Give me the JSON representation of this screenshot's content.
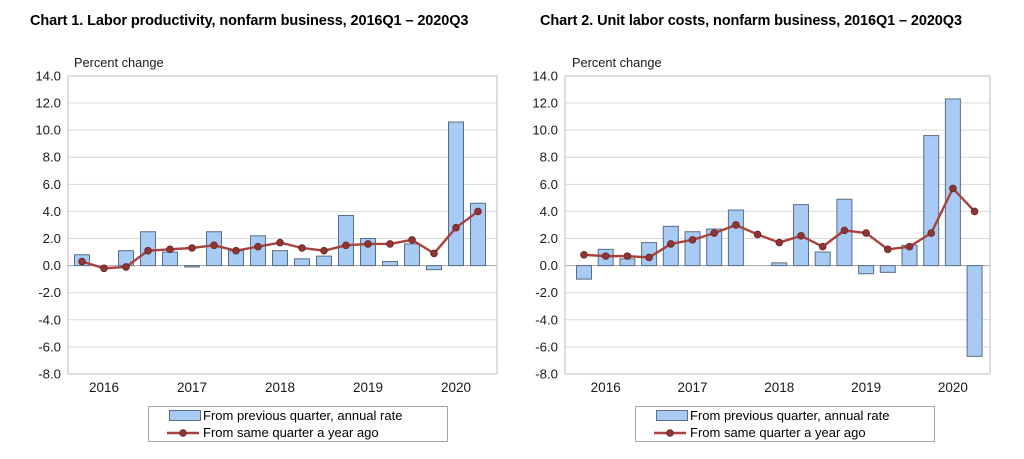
{
  "colors": {
    "bar_fill": "#A7CBF5",
    "bar_stroke": "#5A6E84",
    "line": "#A8423F",
    "marker": "#8F3634",
    "marker_stroke": "#6E2A28",
    "grid": "#D9D9D9",
    "frame": "#BFBFBF",
    "zero_line": "#A6A6A6",
    "tick_text": "#1A1A1A"
  },
  "chart_data": [
    {
      "type": "bar+line",
      "title": "Chart 1. Labor productivity, nonfarm business, 2016Q1 – 2020Q3",
      "y_axis_unit": "Percent change",
      "categories": [
        "2016 Q1",
        "2016 Q2",
        "2016 Q3",
        "2016 Q4",
        "2017 Q1",
        "2017 Q2",
        "2017 Q3",
        "2017 Q4",
        "2018 Q1",
        "2018 Q2",
        "2018 Q3",
        "2018 Q4",
        "2019 Q1",
        "2019 Q2",
        "2019 Q3",
        "2019 Q4",
        "2020 Q1",
        "2020 Q2",
        "2020 Q3"
      ],
      "series": [
        {
          "name": "From previous quarter, annual rate",
          "type": "bar",
          "values": [
            0.8,
            0.0,
            1.1,
            2.5,
            1.0,
            -0.1,
            2.5,
            1.1,
            2.2,
            1.1,
            0.5,
            0.7,
            3.7,
            2.0,
            0.3,
            1.6,
            -0.3,
            10.6,
            4.6
          ]
        },
        {
          "name": "From same quarter a year ago",
          "type": "line",
          "values": [
            0.3,
            -0.2,
            -0.1,
            1.1,
            1.2,
            1.3,
            1.5,
            1.1,
            1.4,
            1.7,
            1.3,
            1.1,
            1.5,
            1.6,
            1.6,
            1.9,
            0.9,
            2.8,
            4.0
          ]
        }
      ],
      "ylim": [
        -8.0,
        14.0
      ],
      "y_ticks": [
        "14.0",
        "12.0",
        "10.0",
        "8.0",
        "6.0",
        "4.0",
        "2.0",
        "0.0",
        "-2.0",
        "-4.0",
        "-6.0",
        "-8.0"
      ],
      "x_year_labels": [
        "2016",
        "2017",
        "2018",
        "2019",
        "2020"
      ],
      "legend": {
        "bar_label": "From previous quarter, annual rate",
        "line_label": "From same quarter a year ago"
      },
      "grid": "on",
      "legend_position": "bottom"
    },
    {
      "type": "bar+line",
      "title": "Chart 2. Unit labor costs, nonfarm business, 2016Q1 – 2020Q3",
      "y_axis_unit": "Percent change",
      "categories": [
        "2016 Q1",
        "2016 Q2",
        "2016 Q3",
        "2016 Q4",
        "2017 Q1",
        "2017 Q2",
        "2017 Q3",
        "2017 Q4",
        "2018 Q1",
        "2018 Q2",
        "2018 Q3",
        "2018 Q4",
        "2019 Q1",
        "2019 Q2",
        "2019 Q3",
        "2019 Q4",
        "2020 Q1",
        "2020 Q2",
        "2020 Q3"
      ],
      "series": [
        {
          "name": "From previous quarter, annual rate",
          "type": "bar",
          "values": [
            -1.0,
            1.2,
            0.5,
            1.7,
            2.9,
            2.5,
            2.7,
            4.1,
            0.0,
            0.2,
            4.5,
            1.0,
            4.9,
            -0.6,
            -0.5,
            1.5,
            9.6,
            12.3,
            -6.7
          ]
        },
        {
          "name": "From same quarter a year ago",
          "type": "line",
          "values": [
            0.8,
            0.7,
            0.7,
            0.6,
            1.6,
            1.9,
            2.4,
            3.0,
            2.3,
            1.7,
            2.2,
            1.4,
            2.6,
            2.4,
            1.2,
            1.4,
            2.4,
            5.7,
            4.0
          ]
        }
      ],
      "ylim": [
        -8.0,
        14.0
      ],
      "y_ticks": [
        "14.0",
        "12.0",
        "10.0",
        "8.0",
        "6.0",
        "4.0",
        "2.0",
        "0.0",
        "-2.0",
        "-4.0",
        "-6.0",
        "-8.0"
      ],
      "x_year_labels": [
        "2016",
        "2017",
        "2018",
        "2019",
        "2020"
      ],
      "legend": {
        "bar_label": "From previous quarter, annual rate",
        "line_label": "From same quarter a year ago"
      },
      "grid": "on",
      "legend_position": "bottom"
    }
  ]
}
